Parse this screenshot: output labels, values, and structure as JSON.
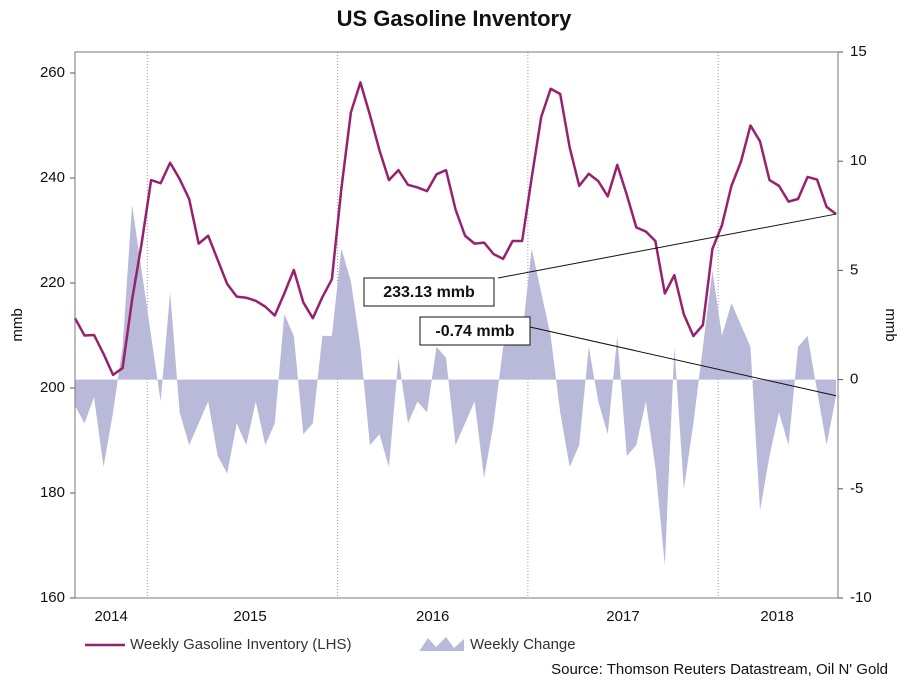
{
  "chart_data": {
    "type": "line",
    "title": "US Gasoline Inventory",
    "y_label": "mmb",
    "y2_label": "mmb",
    "source": "Source: Thomson Reuters Datastream, Oil N' Gold",
    "xlim": [
      2014.62,
      2018.63
    ],
    "xgrid": [
      2015,
      2016,
      2017,
      2018
    ],
    "xticks": [
      {
        "value": 2014.81,
        "label": "2014"
      },
      {
        "value": 2015.54,
        "label": "2015"
      },
      {
        "value": 2016.5,
        "label": "2016"
      },
      {
        "value": 2017.5,
        "label": "2017"
      },
      {
        "value": 2018.31,
        "label": "2018"
      }
    ],
    "ylim": [
      160,
      264
    ],
    "yticks": [
      160,
      180,
      200,
      220,
      240,
      260
    ],
    "y2lim": [
      -10,
      15
    ],
    "y2ticks": [
      -10,
      -5,
      0,
      5,
      10,
      15
    ],
    "x": [
      2014.62,
      2014.67,
      2014.72,
      2014.77,
      2014.82,
      2014.87,
      2014.92,
      2014.97,
      2015.02,
      2015.07,
      2015.12,
      2015.17,
      2015.22,
      2015.27,
      2015.32,
      2015.37,
      2015.42,
      2015.47,
      2015.52,
      2015.57,
      2015.62,
      2015.67,
      2015.72,
      2015.77,
      2015.82,
      2015.87,
      2015.92,
      2015.97,
      2016.02,
      2016.07,
      2016.12,
      2016.17,
      2016.22,
      2016.27,
      2016.32,
      2016.37,
      2016.42,
      2016.47,
      2016.52,
      2016.57,
      2016.62,
      2016.67,
      2016.72,
      2016.77,
      2016.82,
      2016.87,
      2016.92,
      2016.97,
      2017.02,
      2017.07,
      2017.12,
      2017.17,
      2017.22,
      2017.27,
      2017.32,
      2017.37,
      2017.42,
      2017.47,
      2017.52,
      2017.57,
      2017.62,
      2017.67,
      2017.72,
      2017.77,
      2017.82,
      2017.87,
      2017.92,
      2017.97,
      2018.02,
      2018.07,
      2018.12,
      2018.17,
      2018.22,
      2018.27,
      2018.32,
      2018.37,
      2018.42,
      2018.47,
      2018.52,
      2018.57,
      2018.62
    ],
    "series": [
      {
        "name": "Weekly Gasoline Inventory (LHS)",
        "type": "line",
        "color": "#98216f",
        "values": [
          213.3,
          210,
          210.1,
          206.5,
          202.5,
          203.8,
          216.8,
          227.5,
          239.6,
          239,
          242.9,
          239.8,
          236,
          227.5,
          229,
          224.4,
          219.8,
          217.4,
          217.2,
          216.6,
          215.5,
          213.8,
          218,
          222.5,
          216.3,
          213.3,
          217.3,
          220.7,
          238,
          252.5,
          258.2,
          252,
          245.3,
          239.6,
          241.5,
          238.7,
          238.2,
          237.5,
          240.7,
          241.5,
          234,
          229,
          227.5,
          227.7,
          225.5,
          224.6,
          228,
          228,
          240,
          251.6,
          257,
          256,
          245.8,
          238.5,
          240.8,
          239.4,
          236.5,
          242.5,
          236.8,
          230.6,
          229.8,
          228,
          218,
          221.5,
          214,
          209.9,
          212,
          226.5,
          231,
          238.5,
          243.1,
          250,
          247,
          239.6,
          238.5,
          235.5,
          236,
          240.2,
          239.7,
          234.5,
          233.13
        ]
      },
      {
        "name": "Weekly Change",
        "type": "area",
        "axis": "y2",
        "color": "#b9b9d9",
        "values": [
          -1.2,
          -2,
          -0.8,
          -4,
          -1.5,
          1.5,
          8,
          5,
          2,
          -1,
          4,
          -1.5,
          -3,
          -2,
          -1,
          -3.5,
          -4.3,
          -2,
          -3,
          -1,
          -3,
          -2,
          3,
          2,
          -2.5,
          -2,
          2,
          2,
          6,
          4.5,
          1.5,
          -3,
          -2.5,
          -4,
          1,
          -2,
          -1,
          -1.5,
          1.5,
          1,
          -3,
          -2,
          -1,
          -4.5,
          -2,
          1.5,
          2,
          2,
          6,
          4,
          2,
          -1.5,
          -4,
          -3,
          1.5,
          -1,
          -2.5,
          2,
          -3.5,
          -3,
          -1,
          -4,
          -8.5,
          1.5,
          -5,
          -2,
          1.5,
          5,
          2,
          3.5,
          2.5,
          1.5,
          -6,
          -3.5,
          -1.5,
          -3,
          1.5,
          2,
          -0.5,
          -3,
          -0.74
        ]
      }
    ],
    "annotations": [
      {
        "label": "233.13 mmb"
      },
      {
        "label": "-0.74 mmb"
      }
    ]
  }
}
